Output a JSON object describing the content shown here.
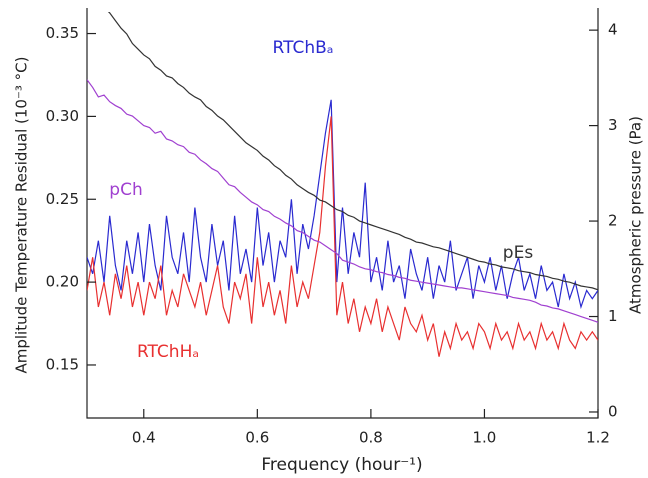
{
  "chart_data": {
    "type": "line",
    "xlabel": "Frequency (hour⁻¹)",
    "ylabel": "Amplitude Temperature Residual (10⁻³ °C)",
    "y2label": "Atmospheric pressure (Pa)",
    "x": [
      0.3,
      0.31,
      0.32,
      0.33,
      0.34,
      0.35,
      0.36,
      0.37,
      0.38,
      0.39,
      0.4,
      0.41,
      0.42,
      0.43,
      0.44,
      0.45,
      0.46,
      0.47,
      0.48,
      0.49,
      0.5,
      0.51,
      0.52,
      0.53,
      0.54,
      0.55,
      0.56,
      0.57,
      0.58,
      0.59,
      0.6,
      0.61,
      0.62,
      0.63,
      0.64,
      0.65,
      0.66,
      0.67,
      0.68,
      0.69,
      0.7,
      0.71,
      0.72,
      0.73,
      0.74,
      0.75,
      0.76,
      0.77,
      0.78,
      0.79,
      0.8,
      0.81,
      0.82,
      0.83,
      0.84,
      0.85,
      0.86,
      0.87,
      0.88,
      0.89,
      0.9,
      0.91,
      0.92,
      0.93,
      0.94,
      0.95,
      0.96,
      0.97,
      0.98,
      0.99,
      1.0,
      1.01,
      1.02,
      1.03,
      1.04,
      1.05,
      1.06,
      1.07,
      1.08,
      1.09,
      1.1,
      1.11,
      1.12,
      1.13,
      1.14,
      1.15,
      1.16,
      1.17,
      1.18,
      1.19,
      1.2
    ],
    "series": [
      {
        "name": "RTChBₐ",
        "color": "#2a2ad0",
        "values": [
          0.215,
          0.205,
          0.225,
          0.2,
          0.24,
          0.21,
          0.195,
          0.225,
          0.205,
          0.23,
          0.2,
          0.235,
          0.21,
          0.195,
          0.24,
          0.215,
          0.205,
          0.23,
          0.2,
          0.245,
          0.215,
          0.2,
          0.235,
          0.21,
          0.225,
          0.195,
          0.24,
          0.205,
          0.22,
          0.2,
          0.245,
          0.21,
          0.23,
          0.2,
          0.225,
          0.215,
          0.25,
          0.205,
          0.235,
          0.22,
          0.24,
          0.265,
          0.29,
          0.31,
          0.2,
          0.245,
          0.205,
          0.23,
          0.215,
          0.26,
          0.2,
          0.215,
          0.195,
          0.225,
          0.2,
          0.21,
          0.19,
          0.22,
          0.205,
          0.195,
          0.215,
          0.19,
          0.21,
          0.2,
          0.225,
          0.195,
          0.205,
          0.215,
          0.19,
          0.21,
          0.2,
          0.215,
          0.195,
          0.21,
          0.19,
          0.205,
          0.215,
          0.195,
          0.205,
          0.19,
          0.21,
          0.195,
          0.2,
          0.185,
          0.205,
          0.19,
          0.2,
          0.185,
          0.195,
          0.19,
          0.195
        ]
      },
      {
        "name": "RTChHₐ",
        "color": "#e83030",
        "values": [
          0.195,
          0.215,
          0.185,
          0.2,
          0.18,
          0.205,
          0.19,
          0.21,
          0.185,
          0.2,
          0.18,
          0.2,
          0.19,
          0.21,
          0.18,
          0.195,
          0.185,
          0.205,
          0.195,
          0.185,
          0.2,
          0.18,
          0.195,
          0.21,
          0.185,
          0.175,
          0.2,
          0.19,
          0.205,
          0.175,
          0.215,
          0.185,
          0.2,
          0.18,
          0.195,
          0.175,
          0.21,
          0.185,
          0.2,
          0.19,
          0.21,
          0.23,
          0.27,
          0.3,
          0.18,
          0.2,
          0.175,
          0.19,
          0.17,
          0.185,
          0.175,
          0.19,
          0.17,
          0.185,
          0.175,
          0.165,
          0.185,
          0.175,
          0.17,
          0.18,
          0.165,
          0.175,
          0.155,
          0.17,
          0.16,
          0.175,
          0.165,
          0.17,
          0.16,
          0.175,
          0.17,
          0.16,
          0.175,
          0.165,
          0.17,
          0.16,
          0.175,
          0.165,
          0.17,
          0.16,
          0.175,
          0.165,
          0.17,
          0.16,
          0.175,
          0.165,
          0.16,
          0.17,
          0.165,
          0.17,
          0.165
        ]
      },
      {
        "name": "pCh",
        "color": "#a040d0",
        "axis": "y2",
        "values": [
          3.48,
          3.4,
          3.3,
          3.32,
          3.25,
          3.21,
          3.18,
          3.12,
          3.1,
          3.05,
          3.0,
          2.98,
          2.92,
          2.94,
          2.86,
          2.84,
          2.8,
          2.78,
          2.72,
          2.7,
          2.64,
          2.6,
          2.55,
          2.52,
          2.45,
          2.38,
          2.36,
          2.3,
          2.25,
          2.2,
          2.17,
          2.12,
          2.1,
          2.05,
          2.02,
          1.98,
          1.95,
          1.9,
          1.88,
          1.84,
          1.8,
          1.78,
          1.74,
          1.7,
          1.66,
          1.59,
          1.57,
          1.55,
          1.52,
          1.5,
          1.49,
          1.47,
          1.46,
          1.44,
          1.43,
          1.41,
          1.4,
          1.38,
          1.37,
          1.36,
          1.35,
          1.34,
          1.33,
          1.32,
          1.31,
          1.3,
          1.3,
          1.29,
          1.28,
          1.27,
          1.26,
          1.25,
          1.24,
          1.23,
          1.22,
          1.2,
          1.19,
          1.18,
          1.17,
          1.15,
          1.12,
          1.11,
          1.09,
          1.08,
          1.06,
          1.04,
          1.02,
          1.0,
          0.98,
          0.96,
          0.94
        ]
      },
      {
        "name": "pEs",
        "color": "#333333",
        "axis": "y2",
        "values": [
          4.6,
          4.48,
          4.36,
          4.24,
          4.18,
          4.1,
          4.02,
          3.96,
          3.86,
          3.8,
          3.74,
          3.7,
          3.62,
          3.58,
          3.52,
          3.5,
          3.44,
          3.4,
          3.34,
          3.3,
          3.27,
          3.2,
          3.16,
          3.1,
          3.06,
          3.0,
          2.94,
          2.88,
          2.82,
          2.78,
          2.74,
          2.68,
          2.64,
          2.58,
          2.54,
          2.48,
          2.44,
          2.38,
          2.34,
          2.3,
          2.27,
          2.22,
          2.2,
          2.16,
          2.12,
          2.1,
          2.06,
          2.04,
          2.0,
          1.98,
          1.96,
          1.94,
          1.92,
          1.9,
          1.88,
          1.86,
          1.83,
          1.81,
          1.78,
          1.77,
          1.75,
          1.73,
          1.72,
          1.7,
          1.68,
          1.66,
          1.64,
          1.62,
          1.6,
          1.58,
          1.57,
          1.55,
          1.54,
          1.52,
          1.51,
          1.5,
          1.48,
          1.47,
          1.46,
          1.44,
          1.43,
          1.42,
          1.4,
          1.39,
          1.37,
          1.36,
          1.34,
          1.32,
          1.31,
          1.3,
          1.28
        ]
      }
    ],
    "xlim": [
      0.3,
      1.2
    ],
    "xticks": [
      0.4,
      0.6,
      0.8,
      {
        "value": 1,
        "label": "1.0"
      },
      1.2
    ],
    "ylim": [
      0.118,
      0.363
    ],
    "yticks": [
      0.15,
      {
        "value": 0.2,
        "label": "0.20"
      },
      0.25,
      {
        "value": 0.3,
        "label": "0.30"
      },
      0.35
    ],
    "y2lim": [
      -0.063,
      4.19
    ],
    "y2ticks": [
      0,
      1,
      2,
      3,
      4
    ]
  }
}
